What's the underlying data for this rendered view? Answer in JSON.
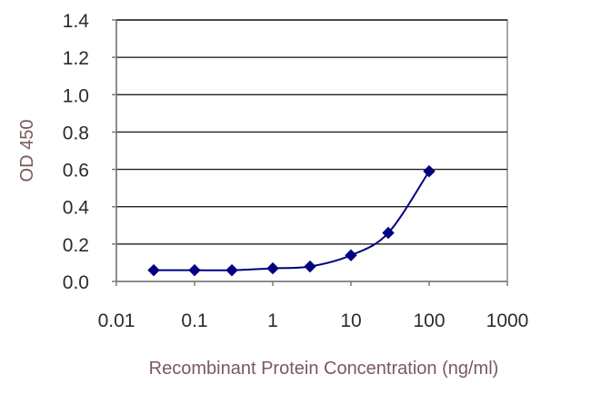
{
  "chart_data": {
    "type": "line",
    "xlabel": "Recombinant Protein Concentration (ng/ml)",
    "ylabel": "OD 450",
    "x_scale": "log",
    "xlim": [
      0.01,
      1000
    ],
    "ylim": [
      0.0,
      1.4
    ],
    "x_ticks": [
      "0.01",
      "0.1",
      "1",
      "10",
      "100",
      "1000"
    ],
    "y_ticks": [
      "0.0",
      "0.2",
      "0.4",
      "0.6",
      "0.8",
      "1.0",
      "1.2",
      "1.4"
    ],
    "grid": "horizontal",
    "series": [
      {
        "x": [
          0.03,
          0.1,
          0.3,
          1,
          3,
          10,
          30,
          100
        ],
        "y": [
          0.06,
          0.06,
          0.06,
          0.07,
          0.08,
          0.14,
          0.26,
          0.59
        ],
        "color": "#000080"
      }
    ]
  }
}
